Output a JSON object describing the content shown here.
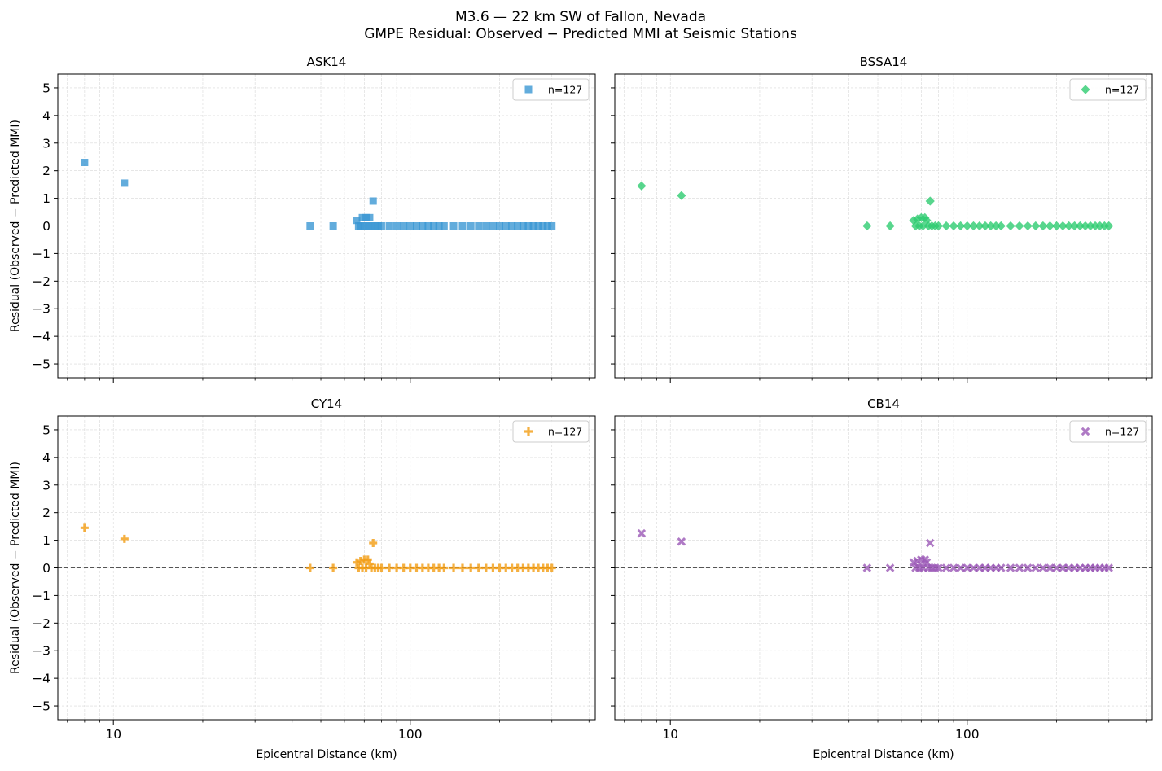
{
  "figure": {
    "title_line1": "M3.6 — 22 km SW of Fallon, Nevada",
    "title_line2": "GMPE Residual: Observed − Predicted MMI at Seismic Stations"
  },
  "chart_data": [
    {
      "type": "scatter",
      "title": "ASK14",
      "xlabel": "",
      "ylabel": "Residual (Observed − Predicted MMI)",
      "xscale": "log",
      "xlim": [
        6.5,
        420
      ],
      "ylim": [
        -5.5,
        5.5
      ],
      "xticks": [
        10,
        100
      ],
      "yticks": [
        5,
        4,
        3,
        2,
        1,
        0,
        -1,
        -2,
        -3,
        -4,
        -5
      ],
      "grid": true,
      "reference_line_y": 0,
      "legend": {
        "label": "n=127",
        "position": "upper right"
      },
      "series": [
        {
          "marker": "square",
          "color": "#3b97d3",
          "points": [
            [
              8,
              2.3
            ],
            [
              10.9,
              1.55
            ],
            [
              46,
              0
            ],
            [
              55,
              0
            ],
            [
              66,
              0.2
            ],
            [
              67,
              0
            ],
            [
              68,
              0
            ],
            [
              69,
              0.3
            ],
            [
              70,
              0
            ],
            [
              71,
              0.3
            ],
            [
              72,
              0
            ],
            [
              73,
              0.3
            ],
            [
              74,
              0
            ],
            [
              75,
              0.9
            ],
            [
              76,
              0
            ],
            [
              78,
              0
            ],
            [
              80,
              0
            ],
            [
              85,
              0
            ],
            [
              90,
              0
            ],
            [
              95,
              0
            ],
            [
              100,
              0
            ],
            [
              105,
              0
            ],
            [
              110,
              0
            ],
            [
              115,
              0
            ],
            [
              120,
              0
            ],
            [
              125,
              0
            ],
            [
              130,
              0
            ],
            [
              140,
              0
            ],
            [
              150,
              0
            ],
            [
              160,
              0
            ],
            [
              170,
              0
            ],
            [
              180,
              0
            ],
            [
              190,
              0
            ],
            [
              200,
              0
            ],
            [
              210,
              0
            ],
            [
              220,
              0
            ],
            [
              230,
              0
            ],
            [
              240,
              0
            ],
            [
              250,
              0
            ],
            [
              260,
              0
            ],
            [
              270,
              0
            ],
            [
              280,
              0
            ],
            [
              290,
              0
            ],
            [
              300,
              0
            ]
          ]
        }
      ]
    },
    {
      "type": "scatter",
      "title": "BSSA14",
      "xlabel": "",
      "ylabel": "",
      "xscale": "log",
      "xlim": [
        6.5,
        420
      ],
      "ylim": [
        -5.5,
        5.5
      ],
      "xticks": [
        10,
        100
      ],
      "yticks": [
        5,
        4,
        3,
        2,
        1,
        0,
        -1,
        -2,
        -3,
        -4,
        -5
      ],
      "grid": true,
      "reference_line_y": 0,
      "legend": {
        "label": "n=127",
        "position": "upper right"
      },
      "series": [
        {
          "marker": "diamond",
          "color": "#2ecc71",
          "points": [
            [
              8,
              1.45
            ],
            [
              10.9,
              1.1
            ],
            [
              46,
              0
            ],
            [
              55,
              0
            ],
            [
              66,
              0.2
            ],
            [
              67,
              0
            ],
            [
              68,
              0.25
            ],
            [
              69,
              0
            ],
            [
              70,
              0.3
            ],
            [
              71,
              0
            ],
            [
              72,
              0.3
            ],
            [
              73,
              0.2
            ],
            [
              74,
              0
            ],
            [
              75,
              0.9
            ],
            [
              76,
              0
            ],
            [
              78,
              0
            ],
            [
              80,
              0
            ],
            [
              85,
              0
            ],
            [
              90,
              0
            ],
            [
              95,
              0
            ],
            [
              100,
              0
            ],
            [
              105,
              0
            ],
            [
              110,
              0
            ],
            [
              115,
              0
            ],
            [
              120,
              0
            ],
            [
              125,
              0
            ],
            [
              130,
              0
            ],
            [
              140,
              0
            ],
            [
              150,
              0
            ],
            [
              160,
              0
            ],
            [
              170,
              0
            ],
            [
              180,
              0
            ],
            [
              190,
              0
            ],
            [
              200,
              0
            ],
            [
              210,
              0
            ],
            [
              220,
              0
            ],
            [
              230,
              0
            ],
            [
              240,
              0
            ],
            [
              250,
              0
            ],
            [
              260,
              0
            ],
            [
              270,
              0
            ],
            [
              280,
              0
            ],
            [
              290,
              0
            ],
            [
              300,
              0
            ]
          ]
        }
      ]
    },
    {
      "type": "scatter",
      "title": "CY14",
      "xlabel": "Epicentral Distance (km)",
      "ylabel": "Residual (Observed − Predicted MMI)",
      "xscale": "log",
      "xlim": [
        6.5,
        420
      ],
      "ylim": [
        -5.5,
        5.5
      ],
      "xticks": [
        10,
        100
      ],
      "yticks": [
        5,
        4,
        3,
        2,
        1,
        0,
        -1,
        -2,
        -3,
        -4,
        -5
      ],
      "grid": true,
      "reference_line_y": 0,
      "legend": {
        "label": "n=127",
        "position": "upper right"
      },
      "series": [
        {
          "marker": "plus",
          "color": "#f39c12",
          "points": [
            [
              8,
              1.45
            ],
            [
              10.9,
              1.05
            ],
            [
              46,
              0
            ],
            [
              55,
              0
            ],
            [
              66,
              0.2
            ],
            [
              67,
              0
            ],
            [
              68,
              0.25
            ],
            [
              69,
              0
            ],
            [
              70,
              0.3
            ],
            [
              71,
              0
            ],
            [
              72,
              0.3
            ],
            [
              73,
              0.15
            ],
            [
              74,
              0
            ],
            [
              75,
              0.9
            ],
            [
              76,
              0
            ],
            [
              78,
              0
            ],
            [
              80,
              0
            ],
            [
              85,
              0
            ],
            [
              90,
              0
            ],
            [
              95,
              0
            ],
            [
              100,
              0
            ],
            [
              105,
              0
            ],
            [
              110,
              0
            ],
            [
              115,
              0
            ],
            [
              120,
              0
            ],
            [
              125,
              0
            ],
            [
              130,
              0
            ],
            [
              140,
              0
            ],
            [
              150,
              0
            ],
            [
              160,
              0
            ],
            [
              170,
              0
            ],
            [
              180,
              0
            ],
            [
              190,
              0
            ],
            [
              200,
              0
            ],
            [
              210,
              0
            ],
            [
              220,
              0
            ],
            [
              230,
              0
            ],
            [
              240,
              0
            ],
            [
              250,
              0
            ],
            [
              260,
              0
            ],
            [
              270,
              0
            ],
            [
              280,
              0
            ],
            [
              290,
              0
            ],
            [
              300,
              0
            ]
          ]
        }
      ]
    },
    {
      "type": "scatter",
      "title": "CB14",
      "xlabel": "Epicentral Distance (km)",
      "ylabel": "",
      "xscale": "log",
      "xlim": [
        6.5,
        420
      ],
      "ylim": [
        -5.5,
        5.5
      ],
      "xticks": [
        10,
        100
      ],
      "yticks": [
        5,
        4,
        3,
        2,
        1,
        0,
        -1,
        -2,
        -3,
        -4,
        -5
      ],
      "grid": true,
      "reference_line_y": 0,
      "legend": {
        "label": "n=127",
        "position": "upper right"
      },
      "series": [
        {
          "marker": "x",
          "color": "#9b59b6",
          "points": [
            [
              8,
              1.25
            ],
            [
              10.9,
              0.95
            ],
            [
              46,
              0
            ],
            [
              55,
              0
            ],
            [
              66,
              0.2
            ],
            [
              67,
              0
            ],
            [
              68,
              0.25
            ],
            [
              69,
              0
            ],
            [
              70,
              0.3
            ],
            [
              71,
              0
            ],
            [
              72,
              0.3
            ],
            [
              73,
              0.2
            ],
            [
              74,
              0
            ],
            [
              75,
              0.9
            ],
            [
              76,
              0
            ],
            [
              78,
              0
            ],
            [
              80,
              0
            ],
            [
              85,
              0
            ],
            [
              90,
              0
            ],
            [
              95,
              0
            ],
            [
              100,
              0
            ],
            [
              105,
              0
            ],
            [
              110,
              0
            ],
            [
              115,
              0
            ],
            [
              120,
              0
            ],
            [
              125,
              0
            ],
            [
              130,
              0
            ],
            [
              140,
              0
            ],
            [
              150,
              0
            ],
            [
              160,
              0
            ],
            [
              170,
              0
            ],
            [
              180,
              0
            ],
            [
              190,
              0
            ],
            [
              200,
              0
            ],
            [
              210,
              0
            ],
            [
              220,
              0
            ],
            [
              230,
              0
            ],
            [
              240,
              0
            ],
            [
              250,
              0
            ],
            [
              260,
              0
            ],
            [
              270,
              0
            ],
            [
              280,
              0
            ],
            [
              290,
              0
            ],
            [
              300,
              0
            ]
          ]
        }
      ]
    }
  ]
}
